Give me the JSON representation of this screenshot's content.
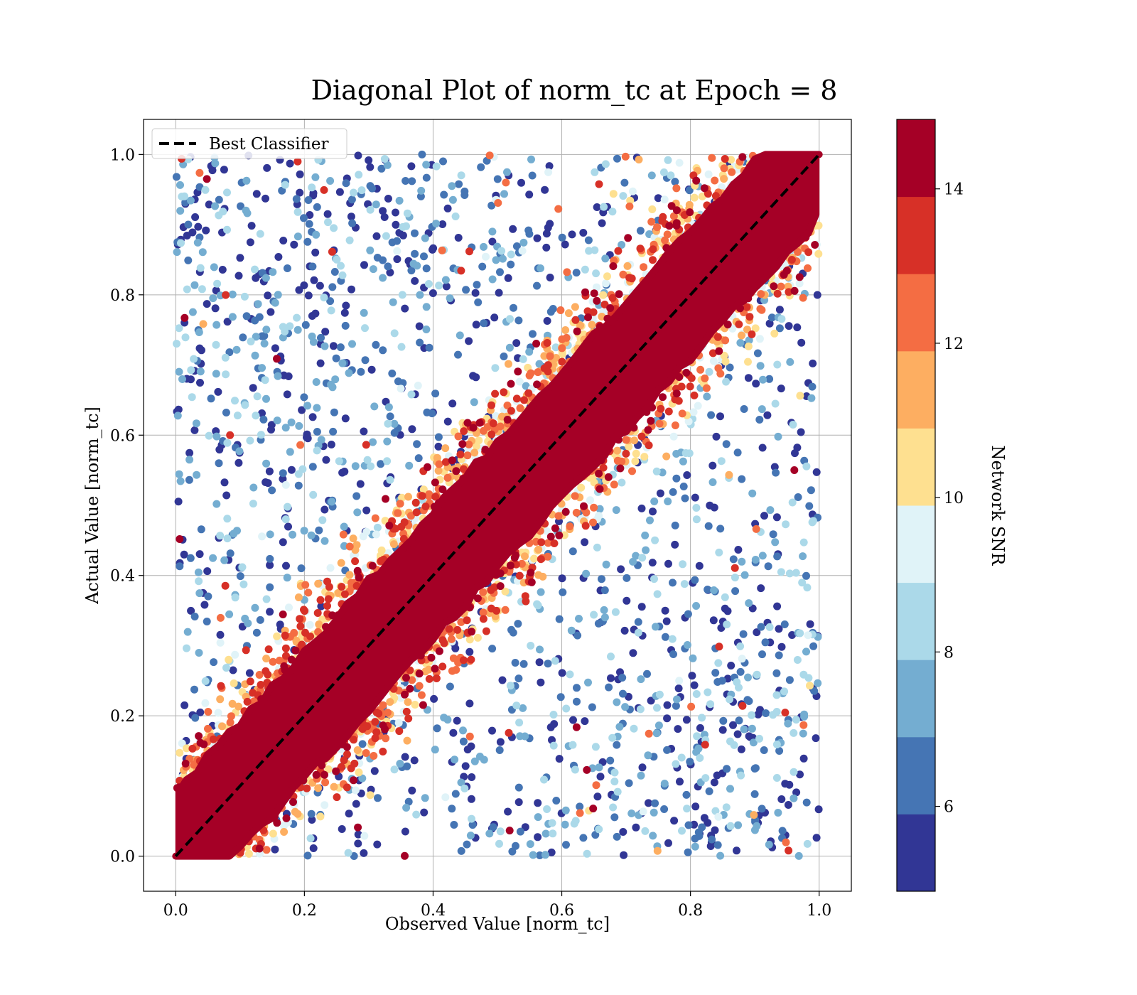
{
  "chart_data": {
    "type": "scatter",
    "title": "Diagonal Plot of norm_tc at Epoch = 8",
    "xlabel": "Observed Value [norm_tc]",
    "ylabel": "Actual Value [norm_tc]",
    "xlim": [
      -0.05,
      1.05
    ],
    "ylim": [
      -0.05,
      1.05
    ],
    "xticks": [
      "0.0",
      "0.2",
      "0.4",
      "0.6",
      "0.8",
      "1.0"
    ],
    "yticks": [
      "0.0",
      "0.2",
      "0.4",
      "0.6",
      "0.8",
      "1.0"
    ],
    "grid": true,
    "legend": {
      "placement": "upper-left",
      "entries": [
        "Best Classifier"
      ]
    },
    "reference_line": {
      "name": "Best Classifier",
      "style": "dashed",
      "color": "#000000",
      "points": [
        [
          0,
          0
        ],
        [
          1,
          1
        ]
      ]
    },
    "colorbar": {
      "label": "Network SNR",
      "range": [
        4.9,
        14.9
      ],
      "ticks": [
        "6",
        "8",
        "10",
        "12",
        "14"
      ],
      "colors": [
        "#313695",
        "#4575b4",
        "#74add1",
        "#abd9e9",
        "#e0f3f8",
        "#fee090",
        "#fdae61",
        "#f46d43",
        "#d73027",
        "#a50026"
      ]
    },
    "distribution": {
      "core_band_half_width": 0.09,
      "core_snr": 15,
      "outlier_snr_range": [
        5,
        9
      ],
      "value_range": [
        0,
        1
      ]
    }
  }
}
